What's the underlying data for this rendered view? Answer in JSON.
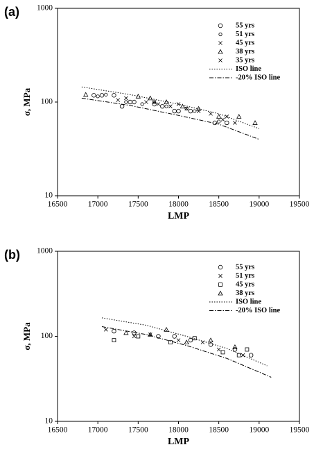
{
  "chart_data": [
    {
      "type": "scatter",
      "label": "(a)",
      "x_label": "LMP",
      "y_label": "σ, MPa",
      "xlim": [
        16500,
        19500
      ],
      "xticks": [
        16500,
        17000,
        17500,
        18000,
        18500,
        19000,
        19500
      ],
      "ylim": [
        10,
        1000
      ],
      "yticks": [
        10,
        100,
        1000
      ],
      "ylog": true,
      "series": [
        {
          "name": "55 yrs",
          "marker": "circle",
          "color": "#000",
          "x": [
            16950,
            17050,
            17200,
            17300,
            17400,
            17450,
            17700,
            17800,
            17950,
            18000,
            18150,
            18450,
            18600
          ],
          "y": [
            118,
            118,
            118,
            90,
            100,
            100,
            95,
            90,
            80,
            80,
            80,
            60,
            60
          ]
        },
        {
          "name": "51 yrs",
          "marker": "circle-small",
          "color": "#000",
          "x": [
            17000,
            17100,
            17350,
            17550,
            17700,
            17850,
            18100,
            18200,
            18500
          ],
          "y": [
            115,
            120,
            100,
            95,
            100,
            90,
            85,
            80,
            62
          ]
        },
        {
          "name": "45 yrs",
          "marker": "x",
          "color": "#000",
          "x": [
            17350,
            17600,
            17750,
            17900,
            18100,
            18250,
            18550,
            18700
          ],
          "y": [
            110,
            100,
            95,
            90,
            85,
            80,
            65,
            60
          ]
        },
        {
          "name": "38 yrs",
          "marker": "triangle",
          "color": "#000",
          "x": [
            16850,
            17500,
            17650,
            17850,
            18050,
            18250,
            18500,
            18750,
            18950
          ],
          "y": [
            120,
            115,
            110,
            100,
            90,
            85,
            70,
            70,
            60
          ]
        },
        {
          "name": "35 yrs",
          "marker": "x",
          "color": "#000",
          "x": [
            17250,
            17700,
            18000,
            18400,
            18600
          ],
          "y": [
            105,
            100,
            95,
            75,
            70
          ]
        },
        {
          "name": "ISO line",
          "line": "dotted",
          "color": "#000",
          "x": [
            16800,
            17400,
            18000,
            18500,
            19000
          ],
          "y": [
            145,
            120,
            95,
            75,
            52
          ]
        },
        {
          "name": "-20% ISO line",
          "line": "dashdot",
          "color": "#000",
          "x": [
            16800,
            17400,
            18000,
            18500,
            19000
          ],
          "y": [
            110,
            92,
            72,
            58,
            40
          ]
        }
      ]
    },
    {
      "type": "scatter",
      "label": "(b)",
      "x_label": "LMP",
      "y_label": "σ, MPa",
      "xlim": [
        16500,
        19500
      ],
      "xticks": [
        16500,
        17000,
        17500,
        18000,
        18500,
        19000,
        19500
      ],
      "ylim": [
        10,
        1000
      ],
      "yticks": [
        10,
        100,
        1000
      ],
      "ylog": true,
      "series": [
        {
          "name": "55 yrs",
          "marker": "circle",
          "color": "#000",
          "x": [
            17200,
            17450,
            17750,
            17950,
            18150,
            18400,
            18700,
            18900
          ],
          "y": [
            115,
            110,
            100,
            100,
            90,
            80,
            70,
            60
          ]
        },
        {
          "name": "51 yrs",
          "marker": "x",
          "color": "#000",
          "x": [
            17100,
            17450,
            17650,
            18000,
            18300,
            18500,
            18800
          ],
          "y": [
            120,
            100,
            105,
            90,
            85,
            70,
            60
          ]
        },
        {
          "name": "45 yrs",
          "marker": "square",
          "color": "#000",
          "x": [
            17200,
            17500,
            17900,
            18200,
            18550,
            18750,
            18850
          ],
          "y": [
            90,
            100,
            85,
            95,
            65,
            60,
            70
          ]
        },
        {
          "name": "38 yrs",
          "marker": "triangle",
          "color": "#000",
          "x": [
            17350,
            17650,
            17850,
            18100,
            18400,
            18700
          ],
          "y": [
            110,
            105,
            120,
            85,
            90,
            75
          ]
        },
        {
          "name": "ISO line",
          "line": "dotted",
          "color": "#000",
          "x": [
            17050,
            17600,
            18100,
            18600,
            19100
          ],
          "y": [
            165,
            135,
            100,
            72,
            45
          ]
        },
        {
          "name": "-20% ISO line",
          "line": "dashdot",
          "color": "#000",
          "x": [
            17050,
            17600,
            18100,
            18600,
            19150
          ],
          "y": [
            130,
            105,
            78,
            55,
            33
          ]
        }
      ]
    }
  ]
}
